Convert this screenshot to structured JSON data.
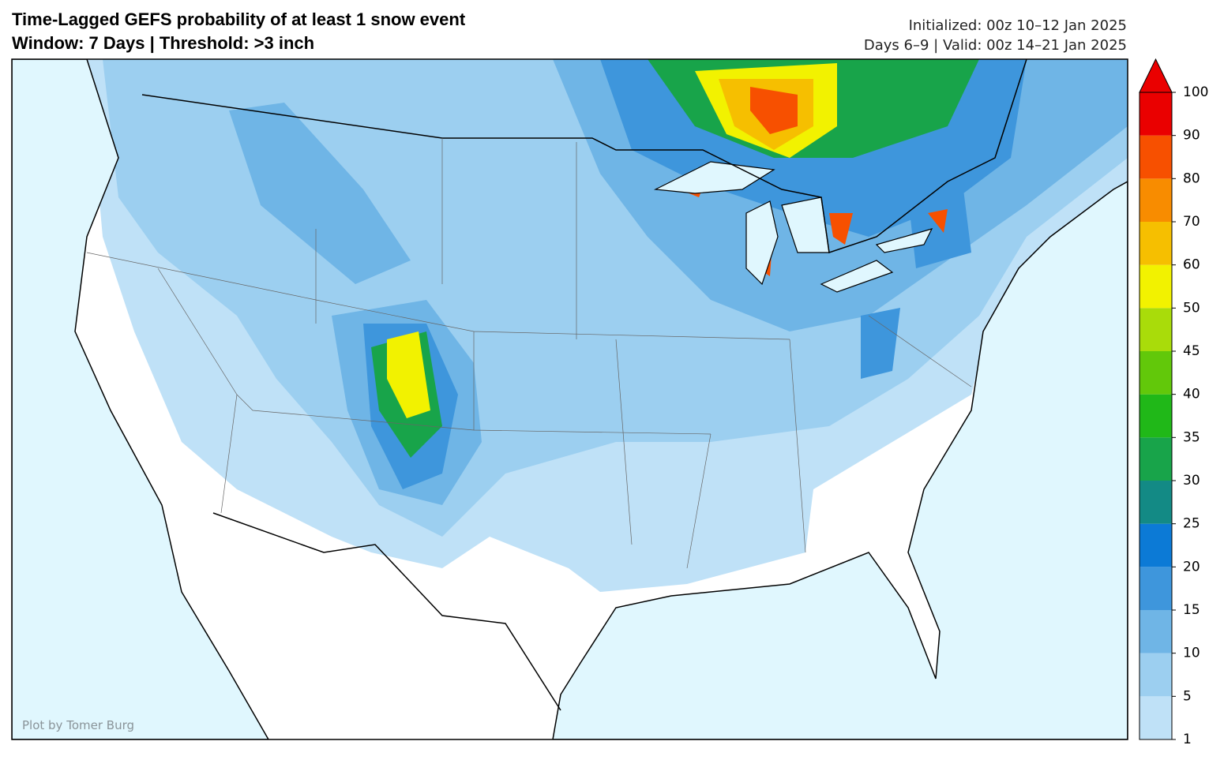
{
  "header": {
    "title_line1": "Time-Lagged GEFS probability of at least 1 snow event",
    "title_line2": "Window: 7 Days | Threshold: >3 inch",
    "init_line": "Initialized: 00z 10–12 Jan 2025",
    "valid_line": "Days 6–9 | Valid: 00z 14–21 Jan 2025"
  },
  "credit": "Plot by Tomer Burg",
  "colorbar": {
    "ticks": [
      1,
      5,
      10,
      15,
      20,
      25,
      30,
      35,
      40,
      45,
      50,
      60,
      70,
      80,
      90,
      100
    ],
    "colors": [
      "#bfe1f7",
      "#9ccff0",
      "#6fb5e6",
      "#3e96dc",
      "#0c7ad6",
      "#138a85",
      "#18a44a",
      "#20b818",
      "#62c80a",
      "#a9dc0a",
      "#f2f200",
      "#f6bf00",
      "#f88c00",
      "#f75000",
      "#ea0000"
    ],
    "extend_color": "#ea0000"
  }
}
